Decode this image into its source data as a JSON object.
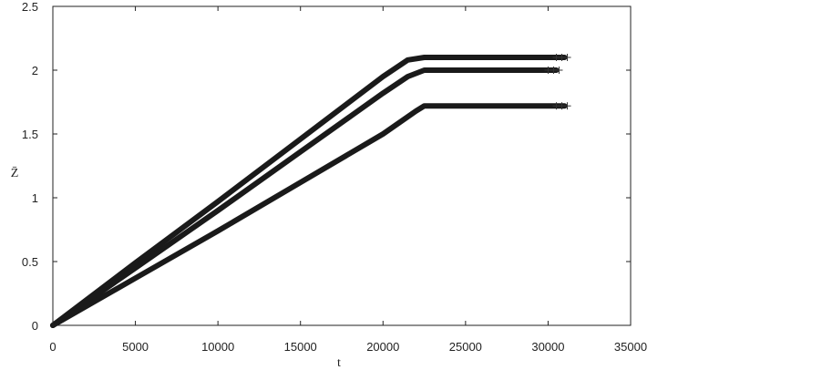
{
  "chart_data": {
    "type": "scatter",
    "xlabel": "t",
    "ylabel": "Z̄",
    "xlim": [
      0,
      35000
    ],
    "ylim": [
      0,
      2.5
    ],
    "xticks": [
      0,
      5000,
      10000,
      15000,
      20000,
      25000,
      30000,
      35000
    ],
    "xtick_labels": [
      "0",
      "5000",
      "10000",
      "15000",
      "20000",
      "25000",
      "30000",
      "35000"
    ],
    "yticks": [
      0,
      0.5,
      1,
      1.5,
      2,
      2.5
    ],
    "ytick_labels": [
      "0",
      "0.5",
      "1",
      "1.5",
      "2",
      "2.5"
    ],
    "grid": false,
    "marker": "+",
    "series": [
      {
        "x": [
          0,
          5000,
          10000,
          15000,
          20000,
          21500,
          22500,
          25000,
          30000,
          31000
        ],
        "y": [
          0,
          0.49,
          0.97,
          1.46,
          1.95,
          2.08,
          2.1,
          2.1,
          2.1,
          2.1
        ]
      },
      {
        "x": [
          0,
          5000,
          10000,
          15000,
          20000,
          21500,
          22500,
          25000,
          30000,
          30500
        ],
        "y": [
          0,
          0.45,
          0.9,
          1.36,
          1.82,
          1.95,
          2.0,
          2.0,
          2.0,
          2.0
        ]
      },
      {
        "x": [
          0,
          5000,
          10000,
          15000,
          20000,
          22000,
          22500,
          25000,
          30000,
          31000
        ],
        "y": [
          0,
          0.37,
          0.74,
          1.12,
          1.5,
          1.68,
          1.72,
          1.72,
          1.72,
          1.72
        ]
      }
    ]
  }
}
